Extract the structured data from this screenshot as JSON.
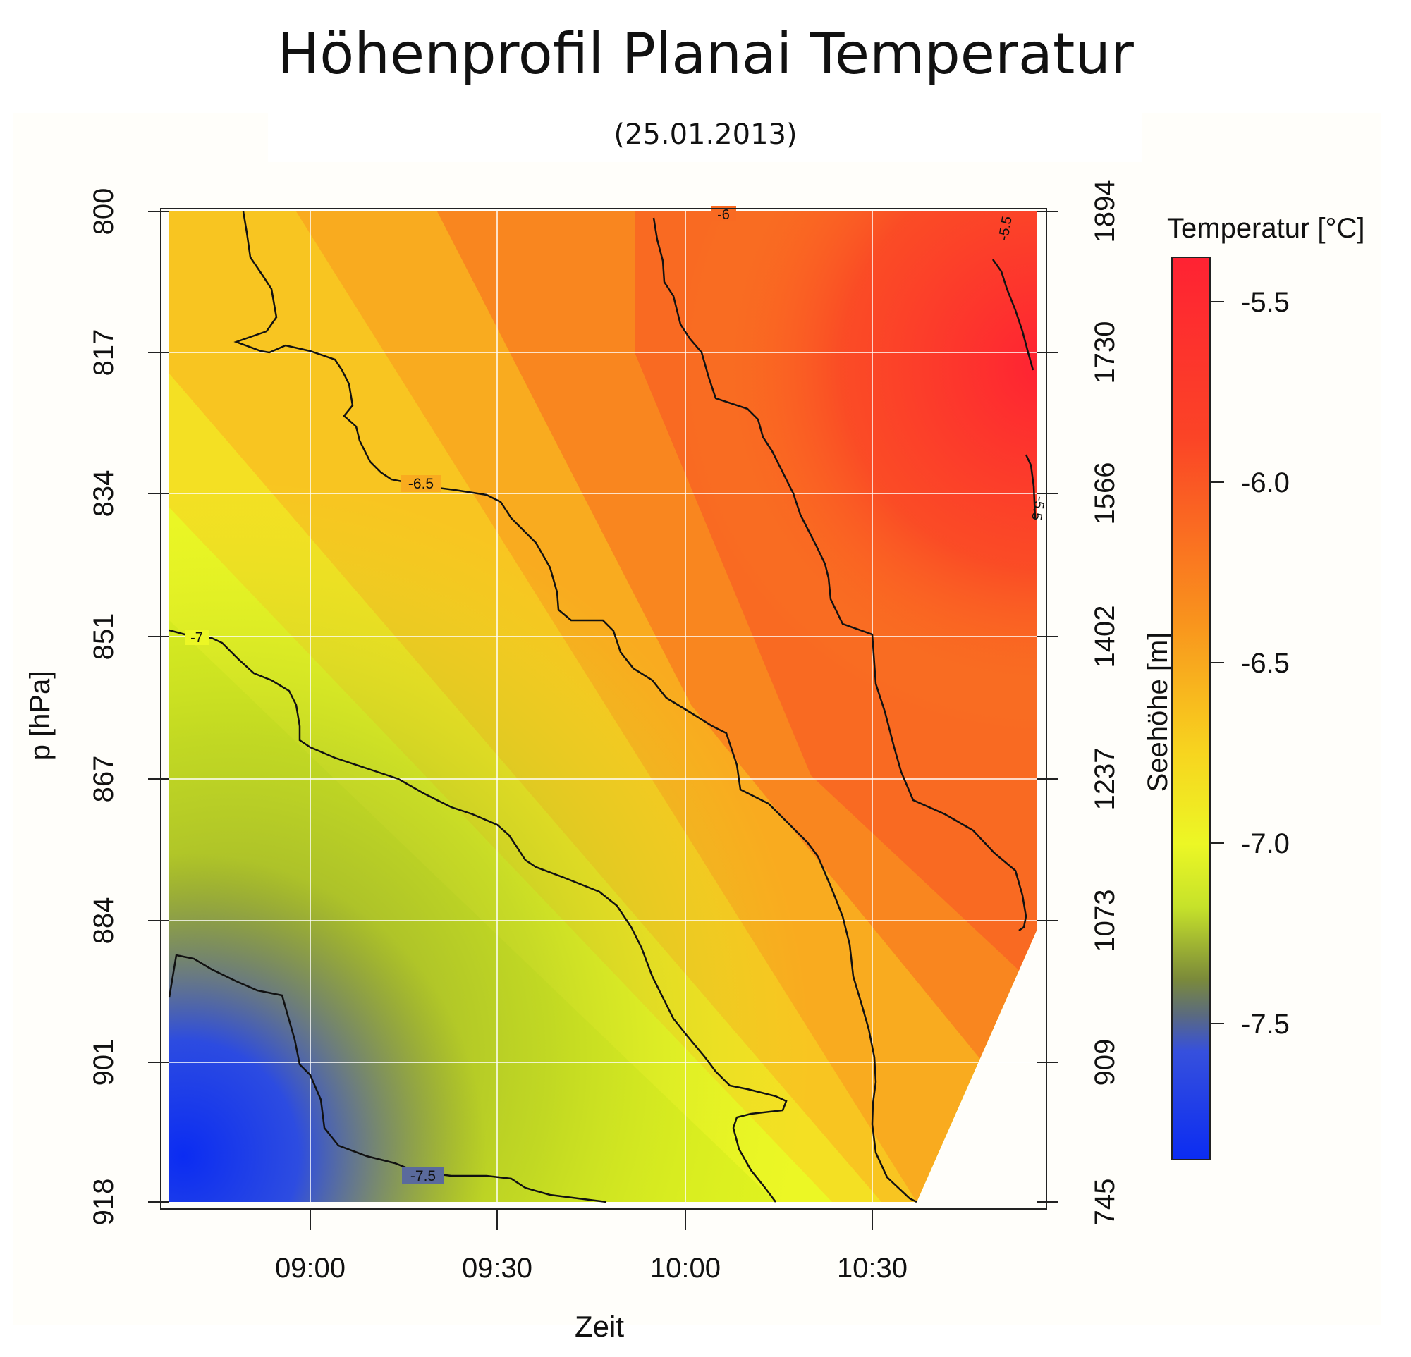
{
  "title": "Höhenprofil Planai Temperatur",
  "subtitle": "(25.01.2013)",
  "colors": {
    "red": "#ff2233",
    "orange": "#f9861f",
    "yellow": "#ecf725",
    "olive": "#7b8a3a",
    "blue": "#0b2cf2"
  },
  "chart_data": {
    "type": "heatmap",
    "title": "Höhenprofil Planai Temperatur",
    "subtitle": "(25.01.2013)",
    "xlabel": "Zeit",
    "ylabel_left": "p [hPa]",
    "ylabel_right": "Seehöhe [m]",
    "x_ticks": [
      "09:00",
      "09:30",
      "10:00",
      "10:30"
    ],
    "x_range": [
      "08:36",
      "10:56"
    ],
    "y_left_ticks": [
      800,
      817,
      834,
      851,
      867,
      884,
      901,
      918
    ],
    "y_right_ticks": [
      1894,
      1730,
      1566,
      1402,
      1237,
      1073,
      909,
      745
    ],
    "grid": true,
    "colorbar": {
      "label": "Temperatur [°C]",
      "ticks": [
        "-5.5",
        "-6.0",
        "-6.5",
        "-7.0",
        "-7.5"
      ],
      "range": [
        -7.85,
        -5.35
      ]
    },
    "contours": [
      {
        "level": "-5.5",
        "label": "-5.5"
      },
      {
        "level": "-6",
        "label": "-6"
      },
      {
        "level": "-6.5",
        "label": "-6.5"
      },
      {
        "level": "-7",
        "label": "-7"
      },
      {
        "level": "-7.5",
        "label": "-7.5"
      }
    ]
  }
}
